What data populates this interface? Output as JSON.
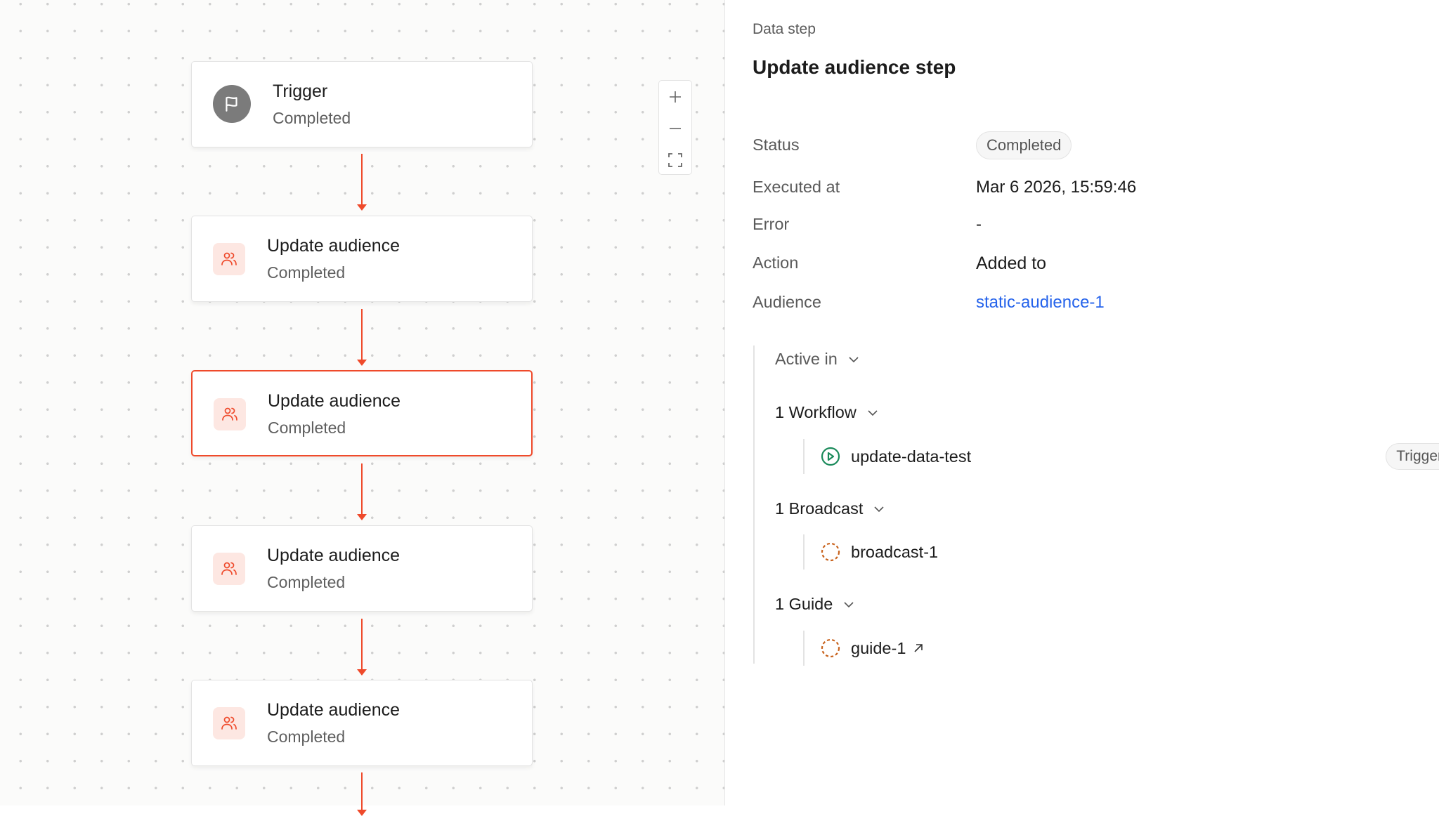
{
  "canvas": {
    "nodes": [
      {
        "title": "Trigger",
        "status": "Completed",
        "icon": "flag-icon"
      },
      {
        "title": "Update audience",
        "status": "Completed",
        "icon": "users-icon"
      },
      {
        "title": "Update audience",
        "status": "Completed",
        "icon": "users-icon",
        "selected": true
      },
      {
        "title": "Update audience",
        "status": "Completed",
        "icon": "users-icon"
      },
      {
        "title": "Update audience",
        "status": "Completed",
        "icon": "users-icon"
      }
    ],
    "accent": "#ef4a2b"
  },
  "panel": {
    "eyebrow": "Data step",
    "title": "Update audience step",
    "fields": {
      "status_label": "Status",
      "status_value": "Completed",
      "executed_label": "Executed at",
      "executed_value": "Mar 6 2026, 15:59:46",
      "error_label": "Error",
      "error_value": "-",
      "action_label": "Action",
      "action_value": "Added to",
      "audience_label": "Audience",
      "audience_value": "static-audience-1"
    },
    "active_in": "Active in",
    "groups": {
      "workflow": {
        "label": "1 Workflow",
        "item": "update-data-test",
        "badge": "Trigger"
      },
      "broadcast": {
        "label": "1 Broadcast",
        "item": "broadcast-1"
      },
      "guide": {
        "label": "1 Guide",
        "item": "guide-1"
      }
    },
    "link_color": "#2563eb"
  }
}
